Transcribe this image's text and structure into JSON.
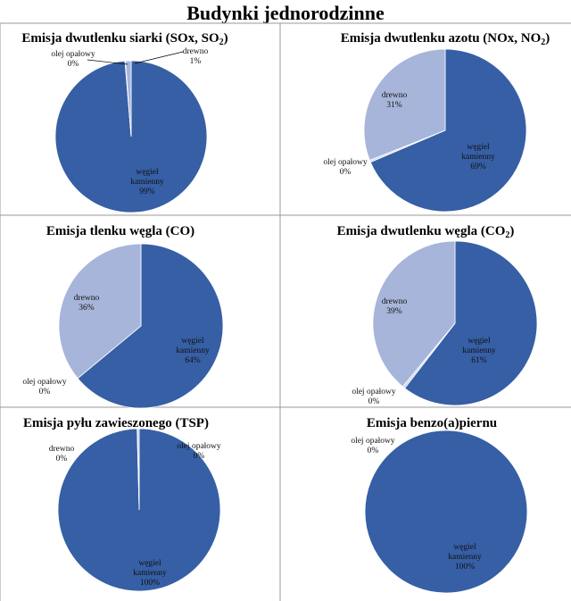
{
  "page_title": "Budynki jednorodzinne",
  "colors": {
    "węgiel kamienny": "#365fa5",
    "drewno": "#a7b5da",
    "olej opałowy": "#d2d9ec",
    "slice_border": "#ffffff",
    "grid_lines": "#999999"
  },
  "chart_data": [
    {
      "type": "pie",
      "title": "Emisja dwutlenku siarki (SOx, SO2)",
      "title_rich": [
        [
          "Emisja dwutlenku siarki (SOx, SO",
          false
        ],
        [
          "2",
          true
        ],
        [
          ")",
          false
        ]
      ],
      "slices": [
        {
          "label": "węgiel kamienny",
          "percent_label": "99%",
          "value": 98.7
        },
        {
          "label": "olej opałowy",
          "percent_label": "0%",
          "value": 0.1
        },
        {
          "label": "drewno",
          "percent_label": "1%",
          "value": 1.2
        }
      ]
    },
    {
      "type": "pie",
      "title": "Emisja dwutlenku azotu  (NOx, NO2)",
      "title_rich": [
        [
          "Emisja dwutlenku azotu  (NOx, NO",
          false
        ],
        [
          "2",
          true
        ],
        [
          ")",
          false
        ]
      ],
      "slices": [
        {
          "label": "węgiel kamienny",
          "percent_label": "69%",
          "value": 68.6
        },
        {
          "label": "olej opałowy",
          "percent_label": "0%",
          "value": 0.4
        },
        {
          "label": "drewno",
          "percent_label": "31%",
          "value": 31.0
        }
      ]
    },
    {
      "type": "pie",
      "title": "Emisja tlenku węgla (CO)",
      "title_rich": [
        [
          "Emisja tlenku węgla (CO)",
          false
        ]
      ],
      "slices": [
        {
          "label": "węgiel kamienny",
          "percent_label": "64%",
          "value": 64.0
        },
        {
          "label": "olej opałowy",
          "percent_label": "0%",
          "value": 0.0
        },
        {
          "label": "drewno",
          "percent_label": "36%",
          "value": 36.0
        }
      ]
    },
    {
      "type": "pie",
      "title": "Emisja dwutlenku węgla (CO2)",
      "title_rich": [
        [
          "Emisja dwutlenku węgla (CO",
          false
        ],
        [
          "2",
          true
        ],
        [
          ")",
          false
        ]
      ],
      "slices": [
        {
          "label": "węgiel kamienny",
          "percent_label": "61%",
          "value": 60.5
        },
        {
          "label": "olej opałowy",
          "percent_label": "0%",
          "value": 0.5
        },
        {
          "label": "drewno",
          "percent_label": "39%",
          "value": 39.0
        }
      ]
    },
    {
      "type": "pie",
      "title": "Emisja pyłu zawieszonego (TSP)",
      "title_rich": [
        [
          "Emisja pyłu zawieszonego (TSP)",
          false
        ]
      ],
      "slices": [
        {
          "label": "węgiel kamienny",
          "percent_label": "100%",
          "value": 99.6
        },
        {
          "label": "olej opałowy",
          "percent_label": "0%",
          "value": 0.1
        },
        {
          "label": "drewno",
          "percent_label": "0%",
          "value": 0.3
        }
      ]
    },
    {
      "type": "pie",
      "title": "Emisja benzo(a)piernu",
      "title_rich": [
        [
          "Emisja benzo(a)piernu",
          false
        ]
      ],
      "slices": [
        {
          "label": "węgiel kamienny",
          "percent_label": "100%",
          "value": 100.0
        },
        {
          "label": "olej opałowy",
          "percent_label": "0%",
          "value": 0.0
        }
      ]
    }
  ]
}
